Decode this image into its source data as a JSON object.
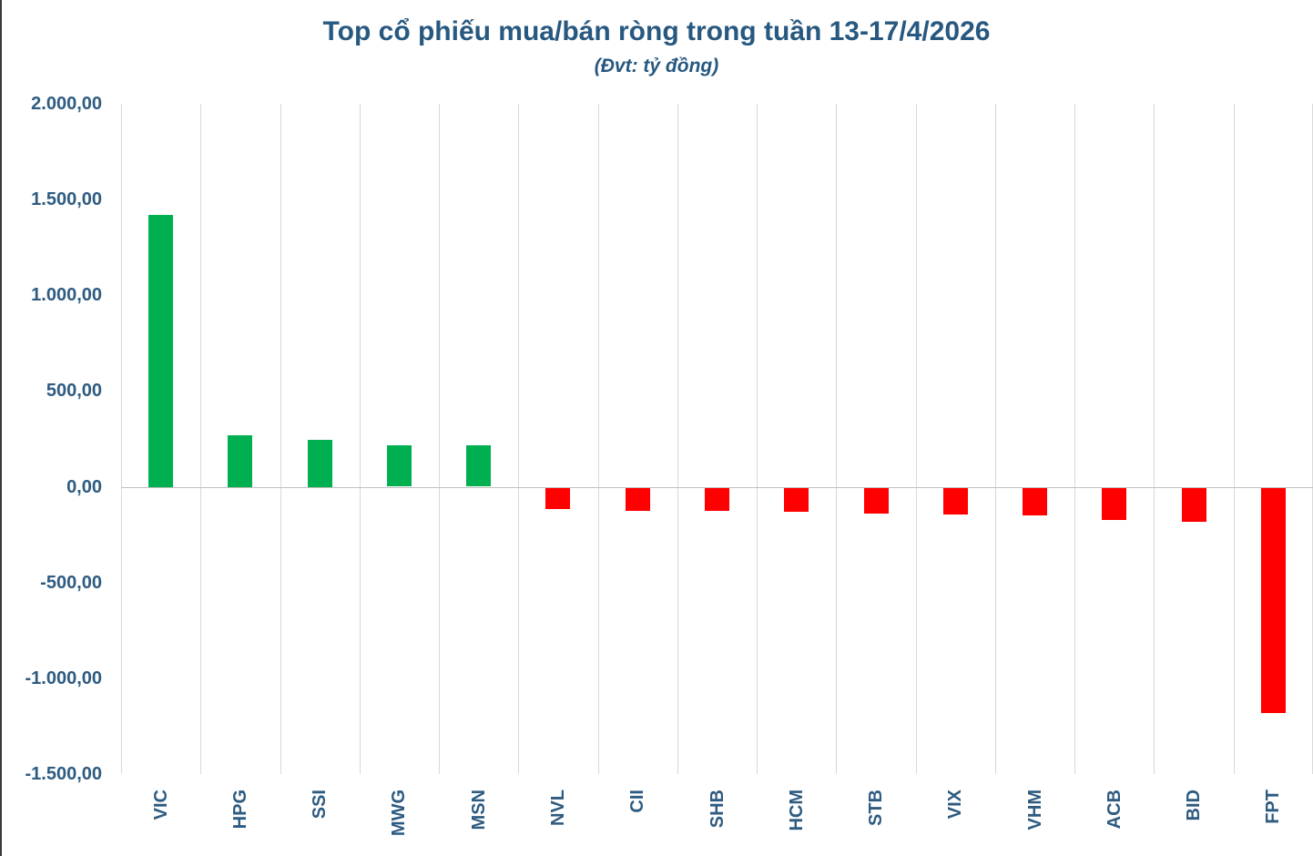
{
  "chart_data": {
    "type": "bar",
    "title": "Top cổ phiếu mua/bán ròng trong tuần 13-17/4/2026",
    "subtitle": "(Đvt: tỷ đồng)",
    "unit": "tỷ đồng",
    "categories": [
      "VIC",
      "HPG",
      "SSI",
      "MWG",
      "MSN",
      "NVL",
      "CII",
      "SHB",
      "HCM",
      "STB",
      "VIX",
      "VHM",
      "ACB",
      "BID",
      "FPT"
    ],
    "values": [
      1420,
      270,
      245,
      215,
      215,
      -110,
      -118,
      -118,
      -125,
      -133,
      -138,
      -145,
      -165,
      -175,
      -1175
    ],
    "ylim": [
      -1500,
      2000
    ],
    "ytick_step": 500,
    "ytick_labels": [
      "2.000,00",
      "1.500,00",
      "1.000,00",
      "500,00",
      "0,00",
      "-500,00",
      "-1.000,00",
      "-1.500,00"
    ],
    "legend": "none",
    "grid": "vertical-category-lines-and-zero-axis",
    "colors": {
      "positive_bar": "#00b050",
      "negative_bar": "#ff0000",
      "title_text": "#275880",
      "axis_text": "#2e5b80",
      "gridline": "#d9d9d9",
      "zero_axis_line": "#bfbfbf"
    }
  }
}
